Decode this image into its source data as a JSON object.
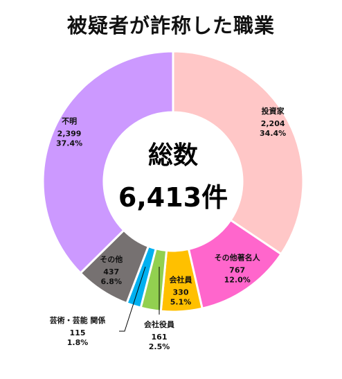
{
  "chart_data": {
    "type": "pie",
    "donut": true,
    "title": "被疑者が詐称した職業",
    "center": {
      "label": "総数",
      "total": "6,413件"
    },
    "slices": [
      {
        "name": "投資家",
        "count": "2,204",
        "value": 34.4,
        "percent": "34.4%",
        "color": "#FFC7C7"
      },
      {
        "name": "その他著名人",
        "count": "767",
        "value": 12.0,
        "percent": "12.0%",
        "color": "#FF66CC"
      },
      {
        "name": "会社員",
        "count": "330",
        "value": 5.1,
        "percent": "5.1%",
        "color": "#FFC000"
      },
      {
        "name": "会社役員",
        "count": "161",
        "value": 2.5,
        "percent": "2.5%",
        "color": "#92D050"
      },
      {
        "name": "芸術・芸能 関係",
        "count": "115",
        "value": 1.8,
        "percent": "1.8%",
        "color": "#00B0F0"
      },
      {
        "name": "その他",
        "count": "437",
        "value": 6.8,
        "percent": "6.8%",
        "color": "#767171"
      },
      {
        "name": "不明",
        "count": "2,399",
        "value": 37.4,
        "percent": "37.4%",
        "color": "#CC99FF"
      }
    ]
  }
}
